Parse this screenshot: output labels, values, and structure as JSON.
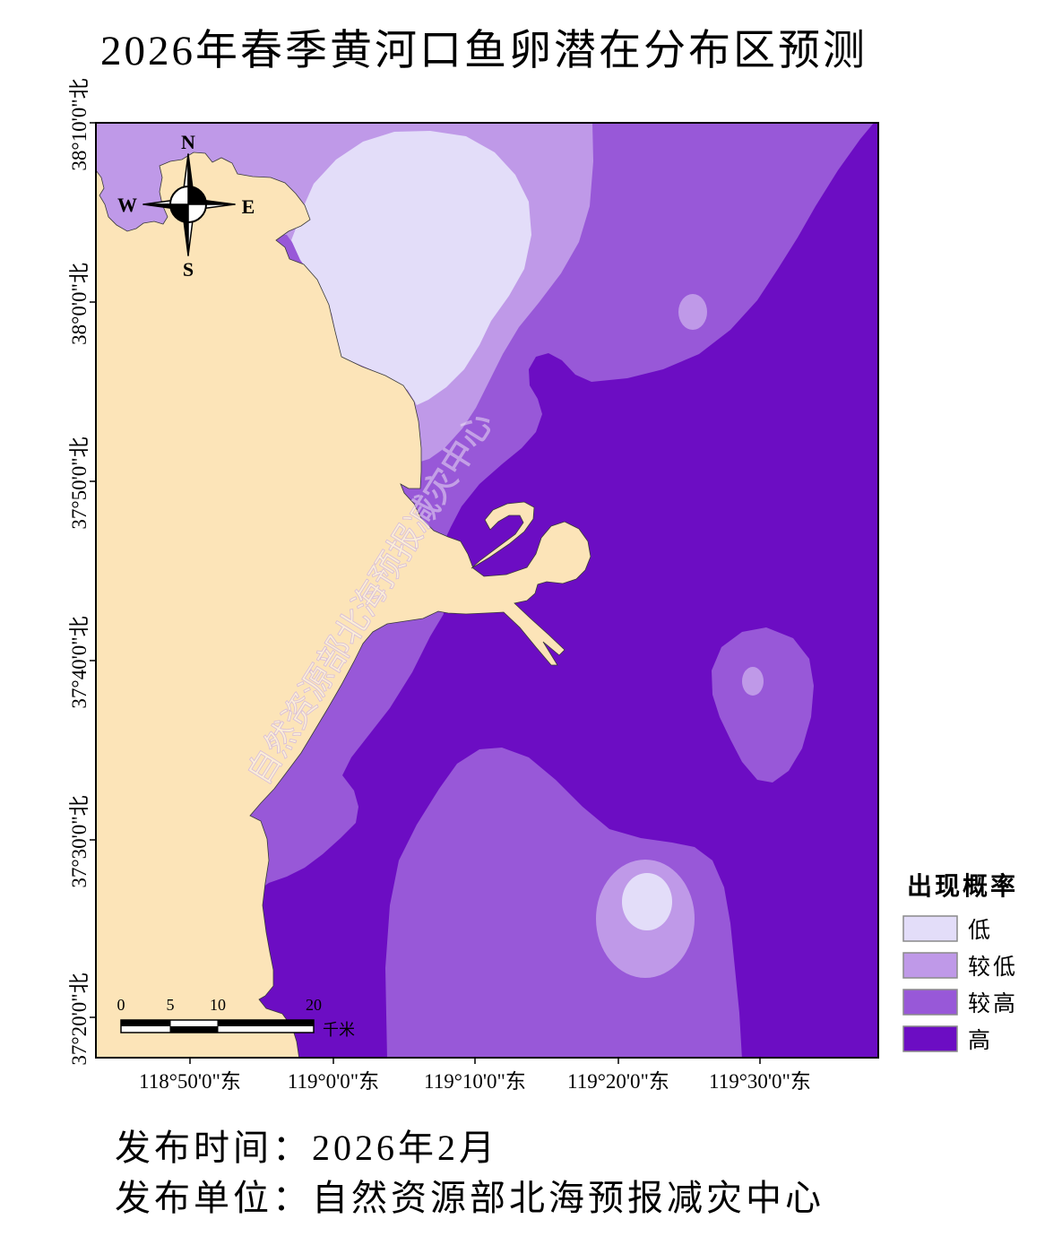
{
  "title": "2026年春季黄河口鱼卵潜在分布区预测",
  "map": {
    "lat_labels": [
      "38°10'0\"北",
      "38°0'0\"北",
      "37°50'0\"北",
      "37°40'0\"北",
      "37°30'0\"北",
      "37°20'0\"北"
    ],
    "lon_labels": [
      "118°50'0\"东",
      "119°0'0\"东",
      "119°10'0\"东",
      "119°20'0\"东",
      "119°30'0\"东"
    ],
    "watermark": "自然资源部北海预报减灾中心",
    "land_color": "#fce4b8"
  },
  "compass": {
    "n": "N",
    "s": "S",
    "e": "E",
    "w": "W"
  },
  "scale_bar": {
    "ticks": [
      "0",
      "5",
      "10",
      "20"
    ],
    "unit": "千米"
  },
  "legend": {
    "title": "出现概率",
    "items": [
      {
        "label": "低",
        "color": "#e3ddf9"
      },
      {
        "label": "较低",
        "color": "#bf99e8"
      },
      {
        "label": "较高",
        "color": "#9858d8"
      },
      {
        "label": "高",
        "color": "#6c0dc3"
      }
    ]
  },
  "footer": {
    "date_line": "发布时间：2026年2月",
    "publisher_line": "发布单位：自然资源部北海预报减灾中心"
  }
}
